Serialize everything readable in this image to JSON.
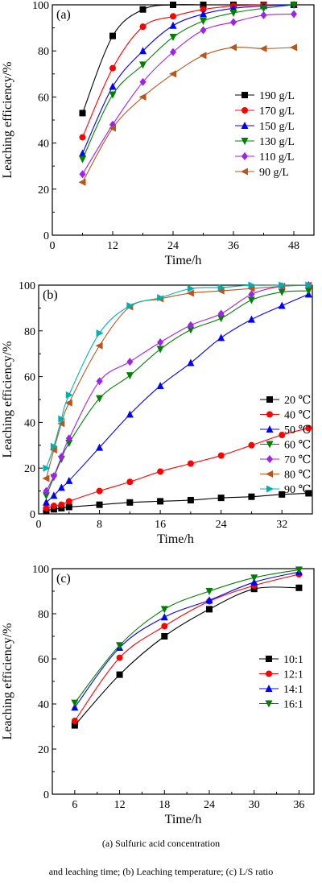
{
  "chart_data": [
    {
      "type": "line",
      "panel_label": "(a)",
      "xlabel": "Time/h",
      "ylabel": "Leaching efficiency/%",
      "xlim": [
        0,
        52
      ],
      "ylim": [
        0,
        100
      ],
      "xticks": [
        0,
        12,
        24,
        36,
        48
      ],
      "yticks": [
        0,
        20,
        40,
        60,
        80,
        100
      ],
      "legend_position": "right",
      "series": [
        {
          "name": "190 g/L",
          "color": "#000000",
          "marker": "square",
          "x": [
            6,
            12,
            18,
            24,
            30,
            36,
            42,
            48
          ],
          "y": [
            53,
            86.5,
            98,
            100,
            100,
            100,
            100,
            100
          ]
        },
        {
          "name": "170 g/L",
          "color": "#ff0000",
          "marker": "circle",
          "x": [
            6,
            12,
            18,
            24,
            30,
            36,
            42,
            48
          ],
          "y": [
            42.5,
            72.5,
            90.5,
            95,
            98,
            99.5,
            100,
            100
          ]
        },
        {
          "name": "150 g/L",
          "color": "#0000ff",
          "marker": "triangle",
          "x": [
            6,
            12,
            18,
            24,
            30,
            36,
            42,
            48
          ],
          "y": [
            35.5,
            64.5,
            80,
            91,
            96,
            98.5,
            99.5,
            100
          ]
        },
        {
          "name": "130 g/L",
          "color": "#008000",
          "marker": "tri-down",
          "x": [
            6,
            12,
            18,
            24,
            30,
            36,
            42,
            48
          ],
          "y": [
            33,
            61,
            74,
            86,
            93,
            96.5,
            98.5,
            100
          ]
        },
        {
          "name": "110 g/L",
          "color": "#a020f0",
          "marker": "diamond",
          "x": [
            6,
            12,
            18,
            24,
            30,
            36,
            42,
            48
          ],
          "y": [
            26.5,
            48,
            66.5,
            79.5,
            89,
            92.5,
            95.5,
            96
          ]
        },
        {
          "name": "90 g/L",
          "color": "#b8561b",
          "marker": "tri-left",
          "x": [
            6,
            12,
            18,
            24,
            30,
            36,
            42,
            48
          ],
          "y": [
            23,
            46.5,
            60,
            70,
            78,
            81.5,
            81,
            81.5
          ]
        }
      ]
    },
    {
      "type": "line",
      "panel_label": "(b)",
      "xlabel": "Time/h",
      "ylabel": "Leaching efficiency/%",
      "xlim": [
        0,
        36
      ],
      "ylim": [
        0,
        100
      ],
      "xticks": [
        0,
        8,
        16,
        24,
        32
      ],
      "yticks": [
        0,
        20,
        40,
        60,
        80,
        100
      ],
      "legend_position": "right",
      "series": [
        {
          "name": "20 ℃",
          "color": "#000000",
          "marker": "square",
          "x": [
            1,
            2,
            3,
            4,
            8,
            12,
            16,
            20,
            24,
            28,
            32,
            35.5
          ],
          "y": [
            1.5,
            2,
            2.5,
            3,
            4,
            5,
            5.5,
            6,
            7,
            7.5,
            8.5,
            9
          ]
        },
        {
          "name": "40 ℃",
          "color": "#ff0000",
          "marker": "circle",
          "x": [
            1,
            2,
            3,
            4,
            8,
            12,
            16,
            20,
            24,
            28,
            32,
            35.5
          ],
          "y": [
            2.5,
            3.5,
            4,
            5.5,
            10,
            14,
            18.5,
            22,
            25.5,
            30,
            34.5,
            37.5
          ]
        },
        {
          "name": "50 ℃",
          "color": "#0000ff",
          "marker": "triangle",
          "x": [
            1,
            2,
            3,
            4,
            8,
            12,
            16,
            20,
            24,
            28,
            32,
            35.5
          ],
          "y": [
            5,
            8,
            11.5,
            14.5,
            29,
            43.5,
            56,
            66,
            77,
            85,
            91,
            96
          ]
        },
        {
          "name": "60 ℃",
          "color": "#008000",
          "marker": "tri-down",
          "x": [
            1,
            2,
            3,
            4,
            8,
            12,
            16,
            20,
            24,
            28,
            32,
            35.5
          ],
          "y": [
            8,
            16,
            24,
            31,
            50.5,
            60.5,
            72,
            80.5,
            85.5,
            93.5,
            97,
            97.5
          ]
        },
        {
          "name": "70 ℃",
          "color": "#a020f0",
          "marker": "diamond",
          "x": [
            1,
            2,
            3,
            4,
            8,
            12,
            16,
            20,
            24,
            28,
            32,
            35.5
          ],
          "y": [
            10,
            16.5,
            25,
            33,
            58,
            66.5,
            75,
            82.5,
            87.5,
            96,
            99.5,
            100
          ]
        },
        {
          "name": "80 ℃",
          "color": "#b8561b",
          "marker": "tri-left",
          "x": [
            1,
            2,
            3,
            4,
            8,
            12,
            16,
            20,
            24,
            28,
            32,
            35.5
          ],
          "y": [
            15.5,
            28,
            39.5,
            48.5,
            73.5,
            90.5,
            94,
            96.5,
            97.5,
            98.5,
            99.5,
            100
          ]
        },
        {
          "name": "90 ℃",
          "color": "#00b0b0",
          "marker": "tri-right",
          "x": [
            1,
            2,
            3,
            4,
            8,
            12,
            16,
            20,
            24,
            28,
            32,
            35.5
          ],
          "y": [
            20,
            29.5,
            41.5,
            52,
            79,
            91,
            94.5,
            98.5,
            99,
            100,
            100,
            100
          ]
        }
      ]
    },
    {
      "type": "line",
      "panel_label": "(c)",
      "xlabel": "Time/h",
      "ylabel": "Leaching efficiency/%",
      "xlim": [
        3,
        38
      ],
      "ylim": [
        0,
        100
      ],
      "xticks": [
        6,
        12,
        18,
        24,
        30,
        36
      ],
      "yticks": [
        0,
        20,
        40,
        60,
        80,
        100
      ],
      "legend_position": "right",
      "series": [
        {
          "name": "10:1",
          "color": "#000000",
          "marker": "square",
          "x": [
            6,
            12,
            18,
            24,
            30,
            36
          ],
          "y": [
            30.5,
            53,
            70,
            82,
            91,
            91.5
          ]
        },
        {
          "name": "12:1",
          "color": "#ff0000",
          "marker": "circle",
          "x": [
            6,
            12,
            18,
            24,
            30,
            36
          ],
          "y": [
            32.5,
            60.5,
            74.5,
            85.5,
            92.5,
            97.5
          ]
        },
        {
          "name": "14:1",
          "color": "#0000ff",
          "marker": "triangle",
          "x": [
            6,
            12,
            18,
            24,
            30,
            36
          ],
          "y": [
            38.5,
            65,
            78.5,
            86,
            94,
            98.5
          ]
        },
        {
          "name": "16:1",
          "color": "#008000",
          "marker": "tri-down",
          "x": [
            6,
            12,
            18,
            24,
            30,
            36
          ],
          "y": [
            40.5,
            66,
            82,
            90,
            96,
            99.5
          ]
        }
      ]
    }
  ],
  "caption": {
    "line1": "(a)  Sulfuric  acid  concentration",
    "line2": "and leaching time; (b) Leaching temperature; (c) L/S ratio"
  }
}
